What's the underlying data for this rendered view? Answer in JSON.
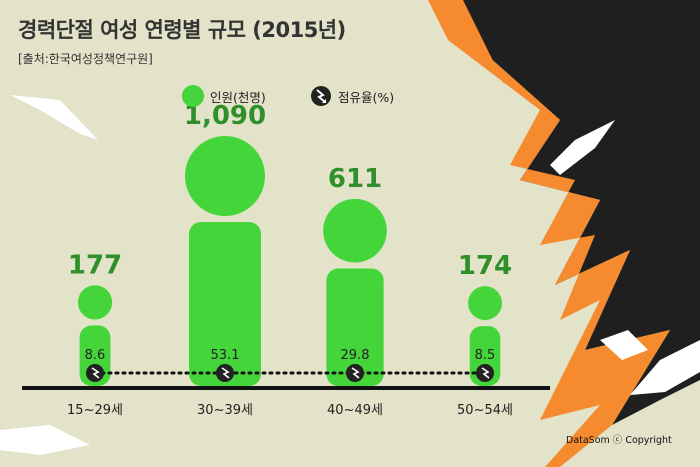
{
  "title": "경력단절 여성 연령별 규모 (2015년)",
  "source": "[출처:한국여성정책연구원]",
  "credit": "DataSom ⓒ Copyright",
  "colors": {
    "background": "#e3e3c9",
    "figure": "#44d53a",
    "orange": "#f58a2f",
    "dark": "#1f1f1f",
    "value_text": "#2f8f2a"
  },
  "icons": {
    "legend_rate": "zigzag-down-icon",
    "figure": "person-figure-icon"
  },
  "chart_data": {
    "type": "pictograph",
    "legend": [
      {
        "label": "인원(천명)",
        "icon": "green-circle"
      },
      {
        "label": "점유율(%)",
        "icon": "zigzag-down-icon"
      }
    ],
    "categories": [
      "15~29세",
      "30~39세",
      "40~49세",
      "50~54세"
    ],
    "series": [
      {
        "name": "인원(천명)",
        "values": [
          177,
          1090,
          611,
          174
        ]
      },
      {
        "name": "점유율(%)",
        "values": [
          8.6,
          53.1,
          29.8,
          8.5
        ]
      }
    ]
  }
}
